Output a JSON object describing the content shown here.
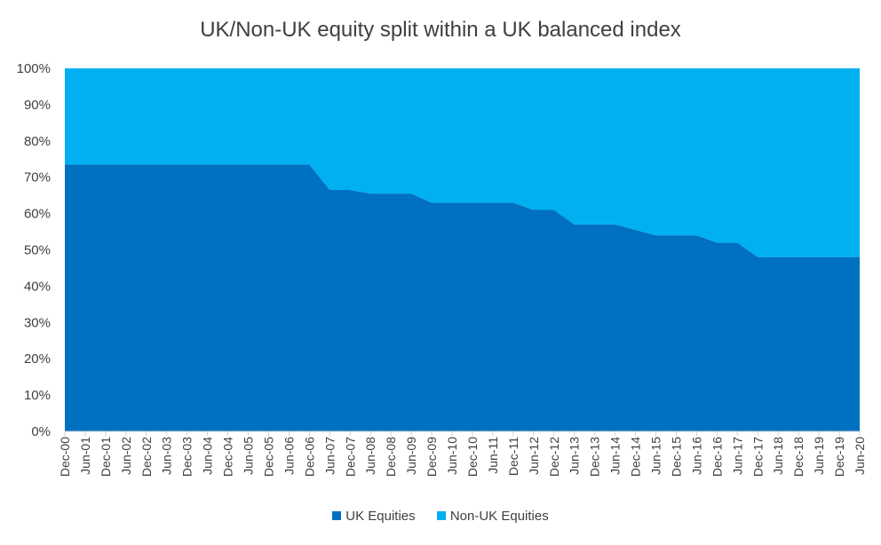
{
  "chart_data": {
    "type": "area",
    "stacked": true,
    "percent": true,
    "title": "UK/Non-UK equity split within a UK balanced index",
    "ylim": [
      0,
      100
    ],
    "yticks": [
      "0%",
      "10%",
      "20%",
      "30%",
      "40%",
      "50%",
      "60%",
      "70%",
      "80%",
      "90%",
      "100%"
    ],
    "xticks": [
      "Dec-00",
      "Jun-01",
      "Dec-01",
      "Jun-02",
      "Dec-02",
      "Jun-03",
      "Dec-03",
      "Jun-04",
      "Dec-04",
      "Jun-05",
      "Dec-05",
      "Jun-06",
      "Dec-06",
      "Jun-07",
      "Dec-07",
      "Jun-08",
      "Dec-08",
      "Jun-09",
      "Dec-09",
      "Jun-10",
      "Dec-10",
      "Jun-11",
      "Dec-11",
      "Jun-12",
      "Dec-12",
      "Jun-13",
      "Dec-13",
      "Jun-14",
      "Dec-14",
      "Jun-15",
      "Dec-15",
      "Jun-16",
      "Dec-16",
      "Jun-17",
      "Dec-17",
      "Jun-18",
      "Dec-18",
      "Jun-19",
      "Dec-19",
      "Jun-20"
    ],
    "series": [
      {
        "name": "UK Equities",
        "color": "#0070C0",
        "values": [
          73.5,
          73.5,
          73.5,
          73.5,
          73.5,
          73.5,
          73.5,
          73.5,
          73.5,
          73.5,
          73.5,
          73.5,
          73.5,
          66.5,
          66.5,
          65.5,
          65.5,
          65.5,
          63,
          63,
          63,
          63,
          63,
          61,
          61,
          57,
          57,
          57,
          55.5,
          54,
          54,
          54,
          52,
          52,
          48,
          48,
          48,
          48,
          48,
          48
        ]
      },
      {
        "name": "Non-UK Equities",
        "color": "#00B0F0",
        "values": [
          26.5,
          26.5,
          26.5,
          26.5,
          26.5,
          26.5,
          26.5,
          26.5,
          26.5,
          26.5,
          26.5,
          26.5,
          26.5,
          33.5,
          33.5,
          34.5,
          34.5,
          34.5,
          37,
          37,
          37,
          37,
          37,
          39,
          39,
          43,
          43,
          43,
          44.5,
          46,
          46,
          46,
          48,
          48,
          52,
          52,
          52,
          52,
          52,
          52
        ]
      }
    ],
    "legend_position": "bottom",
    "grid": false
  }
}
